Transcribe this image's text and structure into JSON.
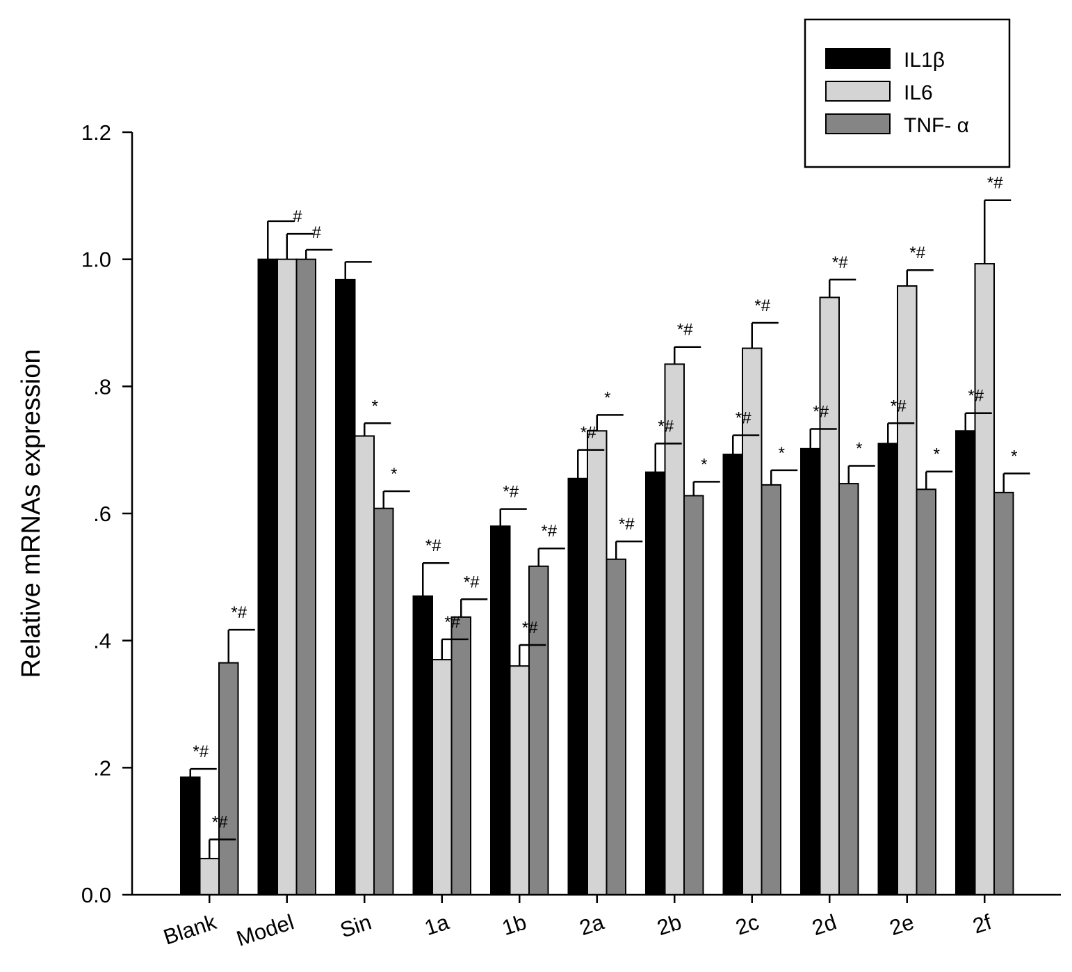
{
  "chart_data": {
    "type": "bar",
    "title": "",
    "xlabel": "",
    "ylabel": "Relative mRNAs expression",
    "ylim": [
      0,
      1.2
    ],
    "yticks": [
      0.0,
      0.2,
      0.4,
      0.6,
      0.8,
      1.0,
      1.2
    ],
    "ytick_labels": [
      "0.0",
      ".2",
      ".4",
      ".6",
      ".8",
      "1.0",
      "1.2"
    ],
    "grid": false,
    "legend_position": "top-right",
    "categories": [
      "Blank",
      "Model",
      "Sin",
      "1a",
      "1b",
      "2a",
      "2b",
      "2c",
      "2d",
      "2e",
      "2f"
    ],
    "series": [
      {
        "name": "IL1β",
        "color": "#000000",
        "values": [
          0.185,
          1.0,
          0.968,
          0.47,
          0.58,
          0.655,
          0.665,
          0.693,
          0.702,
          0.71,
          0.73
        ],
        "errors": [
          0.013,
          0.06,
          0.028,
          0.052,
          0.027,
          0.045,
          0.045,
          0.03,
          0.031,
          0.032,
          0.028
        ],
        "annotations": [
          "*#",
          "",
          "",
          "*#",
          "*#",
          "*#",
          "*#",
          "*#",
          "*#",
          "*#",
          "*#"
        ]
      },
      {
        "name": "IL6",
        "color": "#d4d4d4",
        "values": [
          0.057,
          1.0,
          0.722,
          0.37,
          0.36,
          0.73,
          0.835,
          0.86,
          0.94,
          0.958,
          0.993
        ],
        "errors": [
          0.03,
          0.04,
          0.02,
          0.032,
          0.033,
          0.025,
          0.027,
          0.04,
          0.028,
          0.025,
          0.1
        ],
        "annotations": [
          "*#",
          "#",
          "*",
          "*#",
          "*#",
          "*",
          "*#",
          "*#",
          "*#",
          "*#",
          "*#"
        ]
      },
      {
        "name": "TNF- α",
        "color": "#858585",
        "values": [
          0.365,
          1.0,
          0.608,
          0.437,
          0.517,
          0.528,
          0.628,
          0.645,
          0.647,
          0.638,
          0.633
        ],
        "errors": [
          0.052,
          0.015,
          0.027,
          0.028,
          0.028,
          0.028,
          0.022,
          0.023,
          0.028,
          0.028,
          0.03
        ],
        "annotations": [
          "*#",
          "#",
          "*",
          "*#",
          "*#",
          "*#",
          "*",
          "*",
          "*",
          "*",
          "*"
        ]
      }
    ]
  }
}
